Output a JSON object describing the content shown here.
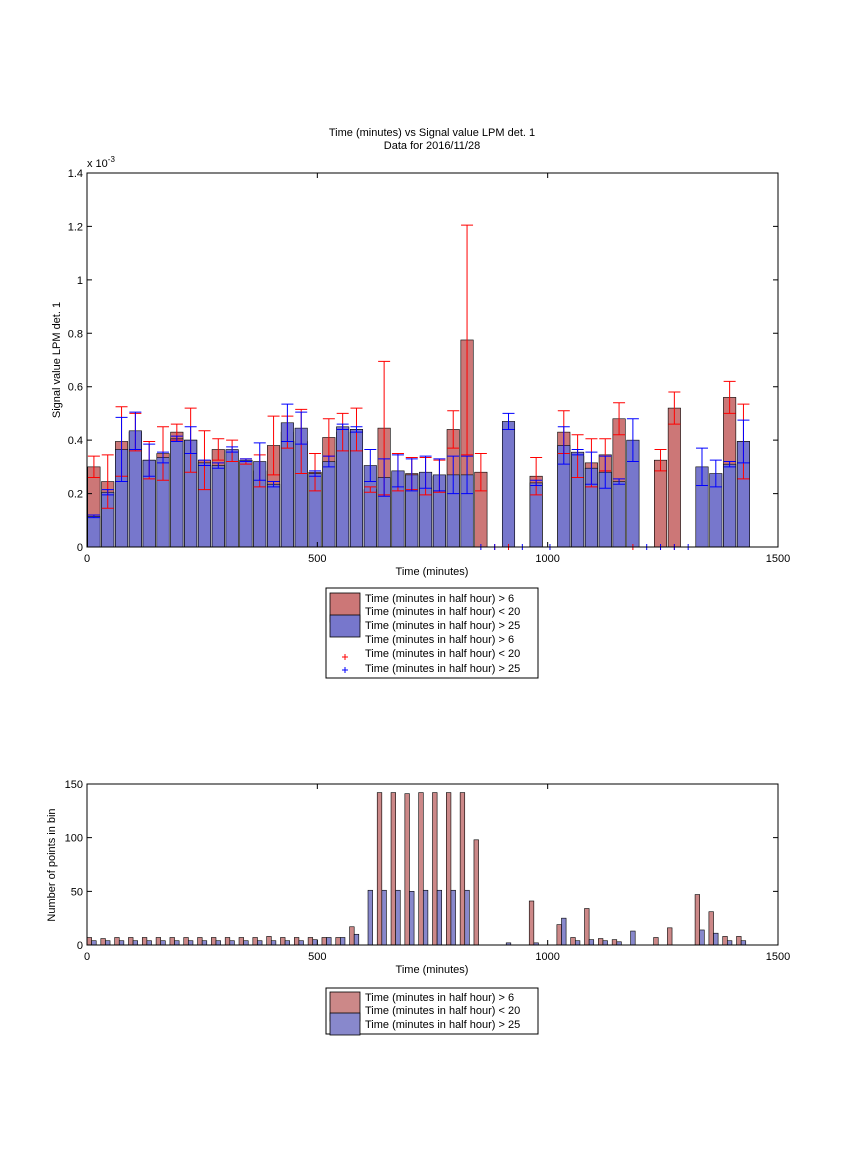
{
  "chart_data": [
    {
      "type": "bar",
      "title": "Time (minutes) vs Signal value LPM det. 1",
      "subtitle": "Data for 2016/11/28",
      "xlabel": "Time (minutes)",
      "ylabel": "Signal value LPM det. 1",
      "y_exponent_label": "x 10",
      "y_exponent_power": "-3",
      "xlim": [
        0,
        1500
      ],
      "ylim": [
        0,
        0.0014
      ],
      "xticks": [
        0,
        500,
        1000,
        1500
      ],
      "xtick_labels": [
        "0",
        "500",
        "1000",
        "1500"
      ],
      "yticks": [
        0,
        0.0002,
        0.0004,
        0.0006,
        0.0008,
        0.001,
        0.0012,
        0.0014
      ],
      "ytick_labels": [
        "0",
        "0.2",
        "0.4",
        "0.6",
        "0.8",
        "1",
        "1.2",
        "1.4"
      ],
      "grid": false,
      "legend_position": "bottom",
      "legend": [
        "Time (minutes in half hour) > 6",
        "Time (minutes in half hour) < 20",
        "Time (minutes in half hour) > 25",
        "Time (minutes in half hour) > 6",
        "Time (minutes in half hour) < 20",
        "Time (minutes in half hour) > 25"
      ],
      "series": [
        {
          "color": "#cc7777",
          "error_color": "#ff0000",
          "points": [
            {
              "x": 15,
              "y": 0.0003,
              "err": 4e-05
            },
            {
              "x": 45,
              "y": 0.000245,
              "err": 0.0001
            },
            {
              "x": 75,
              "y": 0.000395,
              "err": 0.00013
            },
            {
              "x": 105,
              "y": 0.00043,
              "err": 7e-05
            },
            {
              "x": 135,
              "y": 0.000325,
              "err": 7e-05
            },
            {
              "x": 165,
              "y": 0.00035,
              "err": 0.0001
            },
            {
              "x": 195,
              "y": 0.00043,
              "err": 3e-05
            },
            {
              "x": 225,
              "y": 0.0004,
              "err": 0.00012
            },
            {
              "x": 255,
              "y": 0.000325,
              "err": 0.00011
            },
            {
              "x": 285,
              "y": 0.000365,
              "err": 4e-05
            },
            {
              "x": 315,
              "y": 0.00036,
              "err": 4e-05
            },
            {
              "x": 345,
              "y": 0.00032,
              "err": 1e-05
            },
            {
              "x": 375,
              "y": 0.000285,
              "err": 6e-05
            },
            {
              "x": 405,
              "y": 0.00038,
              "err": 0.00011
            },
            {
              "x": 435,
              "y": 0.00043,
              "err": 6e-05
            },
            {
              "x": 465,
              "y": 0.000395,
              "err": 0.00012
            },
            {
              "x": 495,
              "y": 0.00028,
              "err": 7e-05
            },
            {
              "x": 525,
              "y": 0.00041,
              "err": 7e-05
            },
            {
              "x": 555,
              "y": 0.00043,
              "err": 7e-05
            },
            {
              "x": 585,
              "y": 0.00044,
              "err": 8e-05
            },
            {
              "x": 615,
              "y": 0.000215,
              "err": 1e-05
            },
            {
              "x": 645,
              "y": 0.000445,
              "err": 0.00025
            },
            {
              "x": 675,
              "y": 0.00028,
              "err": 7e-05
            },
            {
              "x": 705,
              "y": 0.000275,
              "err": 6e-05
            },
            {
              "x": 735,
              "y": 0.000265,
              "err": 7e-05
            },
            {
              "x": 765,
              "y": 0.000265,
              "err": 6e-05
            },
            {
              "x": 795,
              "y": 0.00044,
              "err": 7e-05
            },
            {
              "x": 825,
              "y": 0.000775,
              "err": 0.00043
            },
            {
              "x": 855,
              "y": 0.00028,
              "err": 7e-05
            },
            {
              "x": 975,
              "y": 0.000265,
              "err": 7e-05
            },
            {
              "x": 1035,
              "y": 0.00043,
              "err": 8e-05
            },
            {
              "x": 1065,
              "y": 0.00034,
              "err": 8e-05
            },
            {
              "x": 1095,
              "y": 0.000315,
              "err": 9e-05
            },
            {
              "x": 1125,
              "y": 0.000345,
              "err": 6e-05
            },
            {
              "x": 1155,
              "y": 0.00048,
              "err": 6e-05
            },
            {
              "x": 1245,
              "y": 0.000325,
              "err": 4e-05
            },
            {
              "x": 1275,
              "y": 0.00052,
              "err": 6e-05
            },
            {
              "x": 1395,
              "y": 0.00056,
              "err": 6e-05
            },
            {
              "x": 1425,
              "y": 0.000395,
              "err": 0.00014
            }
          ],
          "marker_x": [
            885,
            915,
            1185,
            1245,
            1275
          ]
        },
        {
          "color": "#7777cc",
          "error_color": "#0000ff",
          "points": [
            {
              "x": 15,
              "y": 0.000115,
              "err": 5e-06
            },
            {
              "x": 45,
              "y": 0.000205,
              "err": 1e-05
            },
            {
              "x": 75,
              "y": 0.000365,
              "err": 0.00012
            },
            {
              "x": 105,
              "y": 0.000435,
              "err": 7e-05
            },
            {
              "x": 135,
              "y": 0.000325,
              "err": 6e-05
            },
            {
              "x": 165,
              "y": 0.000335,
              "err": 2e-05
            },
            {
              "x": 195,
              "y": 0.000405,
              "err": 1e-05
            },
            {
              "x": 225,
              "y": 0.0004,
              "err": 5e-05
            },
            {
              "x": 255,
              "y": 0.000315,
              "err": 1e-05
            },
            {
              "x": 285,
              "y": 0.000305,
              "err": 1e-05
            },
            {
              "x": 315,
              "y": 0.000365,
              "err": 1e-05
            },
            {
              "x": 345,
              "y": 0.000325,
              "err": 5e-06
            },
            {
              "x": 375,
              "y": 0.00032,
              "err": 7e-05
            },
            {
              "x": 405,
              "y": 0.000235,
              "err": 1e-05
            },
            {
              "x": 435,
              "y": 0.000465,
              "err": 7e-05
            },
            {
              "x": 465,
              "y": 0.000445,
              "err": 6e-05
            },
            {
              "x": 495,
              "y": 0.000275,
              "err": 1e-05
            },
            {
              "x": 525,
              "y": 0.00032,
              "err": 2e-05
            },
            {
              "x": 555,
              "y": 0.00045,
              "err": 1e-05
            },
            {
              "x": 585,
              "y": 0.00044,
              "err": 1e-05
            },
            {
              "x": 615,
              "y": 0.000305,
              "err": 6e-05
            },
            {
              "x": 645,
              "y": 0.00026,
              "err": 7e-05
            },
            {
              "x": 675,
              "y": 0.000285,
              "err": 6e-05
            },
            {
              "x": 705,
              "y": 0.00027,
              "err": 6e-05
            },
            {
              "x": 735,
              "y": 0.00028,
              "err": 6e-05
            },
            {
              "x": 765,
              "y": 0.00027,
              "err": 6e-05
            },
            {
              "x": 795,
              "y": 0.00027,
              "err": 7e-05
            },
            {
              "x": 825,
              "y": 0.00027,
              "err": 7e-05
            },
            {
              "x": 915,
              "y": 0.00047,
              "err": 3e-05
            },
            {
              "x": 975,
              "y": 0.00024,
              "err": 1e-05
            },
            {
              "x": 1035,
              "y": 0.00038,
              "err": 7e-05
            },
            {
              "x": 1065,
              "y": 0.000355,
              "err": 1e-05
            },
            {
              "x": 1095,
              "y": 0.000295,
              "err": 6e-05
            },
            {
              "x": 1125,
              "y": 0.00028,
              "err": 6e-05
            },
            {
              "x": 1155,
              "y": 0.000245,
              "err": 1e-05
            },
            {
              "x": 1185,
              "y": 0.0004,
              "err": 8e-05
            },
            {
              "x": 1335,
              "y": 0.0003,
              "err": 7e-05
            },
            {
              "x": 1365,
              "y": 0.000275,
              "err": 5e-05
            },
            {
              "x": 1395,
              "y": 0.00031,
              "err": 1e-05
            },
            {
              "x": 1425,
              "y": 0.000395,
              "err": 8e-05
            }
          ],
          "marker_x": [
            855,
            885,
            945,
            1005,
            1215,
            1245,
            1275,
            1305
          ]
        }
      ]
    },
    {
      "type": "bar",
      "title": "",
      "xlabel": "Time (minutes)",
      "ylabel": "Number of points in bin",
      "xlim": [
        0,
        1500
      ],
      "ylim": [
        0,
        150
      ],
      "xticks": [
        0,
        500,
        1000,
        1500
      ],
      "xtick_labels": [
        "0",
        "500",
        "1000",
        "1500"
      ],
      "yticks": [
        0,
        50,
        100,
        150
      ],
      "ytick_labels": [
        "0",
        "50",
        "100",
        "150"
      ],
      "grid": false,
      "legend_position": "bottom",
      "legend": [
        "Time (minutes in half hour) > 6",
        "Time (minutes in half hour) < 20",
        "Time (minutes in half hour) > 25"
      ],
      "series": [
        {
          "color": "#cc8888",
          "points": [
            {
              "x": 5,
              "y": 7
            },
            {
              "x": 35,
              "y": 6
            },
            {
              "x": 65,
              "y": 7
            },
            {
              "x": 95,
              "y": 7
            },
            {
              "x": 125,
              "y": 7
            },
            {
              "x": 155,
              "y": 7
            },
            {
              "x": 185,
              "y": 7
            },
            {
              "x": 215,
              "y": 7
            },
            {
              "x": 245,
              "y": 7
            },
            {
              "x": 275,
              "y": 7
            },
            {
              "x": 305,
              "y": 7
            },
            {
              "x": 335,
              "y": 7
            },
            {
              "x": 365,
              "y": 7
            },
            {
              "x": 395,
              "y": 8
            },
            {
              "x": 425,
              "y": 7
            },
            {
              "x": 455,
              "y": 7
            },
            {
              "x": 485,
              "y": 7
            },
            {
              "x": 515,
              "y": 7
            },
            {
              "x": 545,
              "y": 7
            },
            {
              "x": 575,
              "y": 17
            },
            {
              "x": 635,
              "y": 142
            },
            {
              "x": 665,
              "y": 142
            },
            {
              "x": 695,
              "y": 141
            },
            {
              "x": 725,
              "y": 142
            },
            {
              "x": 755,
              "y": 142
            },
            {
              "x": 785,
              "y": 142
            },
            {
              "x": 815,
              "y": 142
            },
            {
              "x": 845,
              "y": 98
            },
            {
              "x": 965,
              "y": 41
            },
            {
              "x": 1025,
              "y": 19
            },
            {
              "x": 1055,
              "y": 7
            },
            {
              "x": 1085,
              "y": 34
            },
            {
              "x": 1115,
              "y": 6
            },
            {
              "x": 1145,
              "y": 5
            },
            {
              "x": 1235,
              "y": 7
            },
            {
              "x": 1265,
              "y": 16
            },
            {
              "x": 1325,
              "y": 47
            },
            {
              "x": 1355,
              "y": 31
            },
            {
              "x": 1385,
              "y": 8
            },
            {
              "x": 1415,
              "y": 8
            }
          ]
        },
        {
          "color": "#8888cc",
          "points": [
            {
              "x": 15,
              "y": 4
            },
            {
              "x": 45,
              "y": 4
            },
            {
              "x": 75,
              "y": 4
            },
            {
              "x": 105,
              "y": 4
            },
            {
              "x": 135,
              "y": 4
            },
            {
              "x": 165,
              "y": 4
            },
            {
              "x": 195,
              "y": 4
            },
            {
              "x": 225,
              "y": 4
            },
            {
              "x": 255,
              "y": 4
            },
            {
              "x": 285,
              "y": 4
            },
            {
              "x": 315,
              "y": 4
            },
            {
              "x": 345,
              "y": 4
            },
            {
              "x": 375,
              "y": 4
            },
            {
              "x": 405,
              "y": 4
            },
            {
              "x": 435,
              "y": 4
            },
            {
              "x": 465,
              "y": 4
            },
            {
              "x": 495,
              "y": 5
            },
            {
              "x": 525,
              "y": 7
            },
            {
              "x": 555,
              "y": 7
            },
            {
              "x": 585,
              "y": 10
            },
            {
              "x": 615,
              "y": 51
            },
            {
              "x": 645,
              "y": 51
            },
            {
              "x": 675,
              "y": 51
            },
            {
              "x": 705,
              "y": 50
            },
            {
              "x": 735,
              "y": 51
            },
            {
              "x": 765,
              "y": 51
            },
            {
              "x": 795,
              "y": 51
            },
            {
              "x": 825,
              "y": 51
            },
            {
              "x": 915,
              "y": 2
            },
            {
              "x": 975,
              "y": 2
            },
            {
              "x": 1035,
              "y": 25
            },
            {
              "x": 1065,
              "y": 4
            },
            {
              "x": 1095,
              "y": 5
            },
            {
              "x": 1125,
              "y": 4
            },
            {
              "x": 1155,
              "y": 3
            },
            {
              "x": 1185,
              "y": 13
            },
            {
              "x": 1335,
              "y": 14
            },
            {
              "x": 1365,
              "y": 11
            },
            {
              "x": 1395,
              "y": 4
            },
            {
              "x": 1425,
              "y": 4
            }
          ]
        }
      ]
    }
  ]
}
